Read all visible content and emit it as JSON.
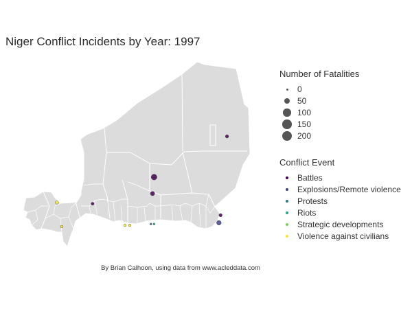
{
  "title": "Niger Conflict Incidents by Year: 1997",
  "caption": "By Brian Calhoon, using data from www.acleddata.com",
  "legend_size": {
    "title": "Number of Fatalities",
    "items": [
      {
        "label": "0",
        "value": 0
      },
      {
        "label": "50",
        "value": 50
      },
      {
        "label": "100",
        "value": 100
      },
      {
        "label": "150",
        "value": 150
      },
      {
        "label": "200",
        "value": 200
      }
    ]
  },
  "legend_color": {
    "title": "Conflict Event",
    "items": [
      {
        "label": "Battles",
        "color": "#440154"
      },
      {
        "label": "Explosions/Remote violence",
        "color": "#414487"
      },
      {
        "label": "Protests",
        "color": "#2a788e"
      },
      {
        "label": "Riots",
        "color": "#22a884"
      },
      {
        "label": "Strategic developments",
        "color": "#7ad151"
      },
      {
        "label": "Violence against civilians",
        "color": "#fde725"
      }
    ]
  },
  "map": {
    "land_color": "#dcdcdc",
    "border_color": "#ffffff",
    "incidents": [
      {
        "lon": 12.6,
        "lat": 20.1,
        "type": "Battles",
        "fatalities": 5
      },
      {
        "lon": 8.1,
        "lat": 16.9,
        "type": "Battles",
        "fatalities": 40
      },
      {
        "lon": 8.0,
        "lat": 15.6,
        "type": "Battles",
        "fatalities": 15
      },
      {
        "lon": 12.2,
        "lat": 13.9,
        "type": "Battles",
        "fatalities": 5
      },
      {
        "lon": 12.1,
        "lat": 13.3,
        "type": "Explosions/Remote violence",
        "fatalities": 20
      },
      {
        "lon": 4.3,
        "lat": 14.8,
        "type": "Battles",
        "fatalities": 3
      },
      {
        "lon": 2.4,
        "lat": 13.0,
        "type": "Violence against civilians",
        "fatalities": 1
      },
      {
        "lon": 2.1,
        "lat": 14.9,
        "type": "Violence against civilians",
        "fatalities": 5
      },
      {
        "lon": 6.3,
        "lat": 13.1,
        "type": "Violence against civilians",
        "fatalities": 1
      },
      {
        "lon": 6.6,
        "lat": 13.1,
        "type": "Violence against civilians",
        "fatalities": 1
      },
      {
        "lon": 8.1,
        "lat": 13.2,
        "type": "Riots",
        "fatalities": 0
      },
      {
        "lon": 7.9,
        "lat": 13.2,
        "type": "Protests",
        "fatalities": 0
      }
    ]
  }
}
